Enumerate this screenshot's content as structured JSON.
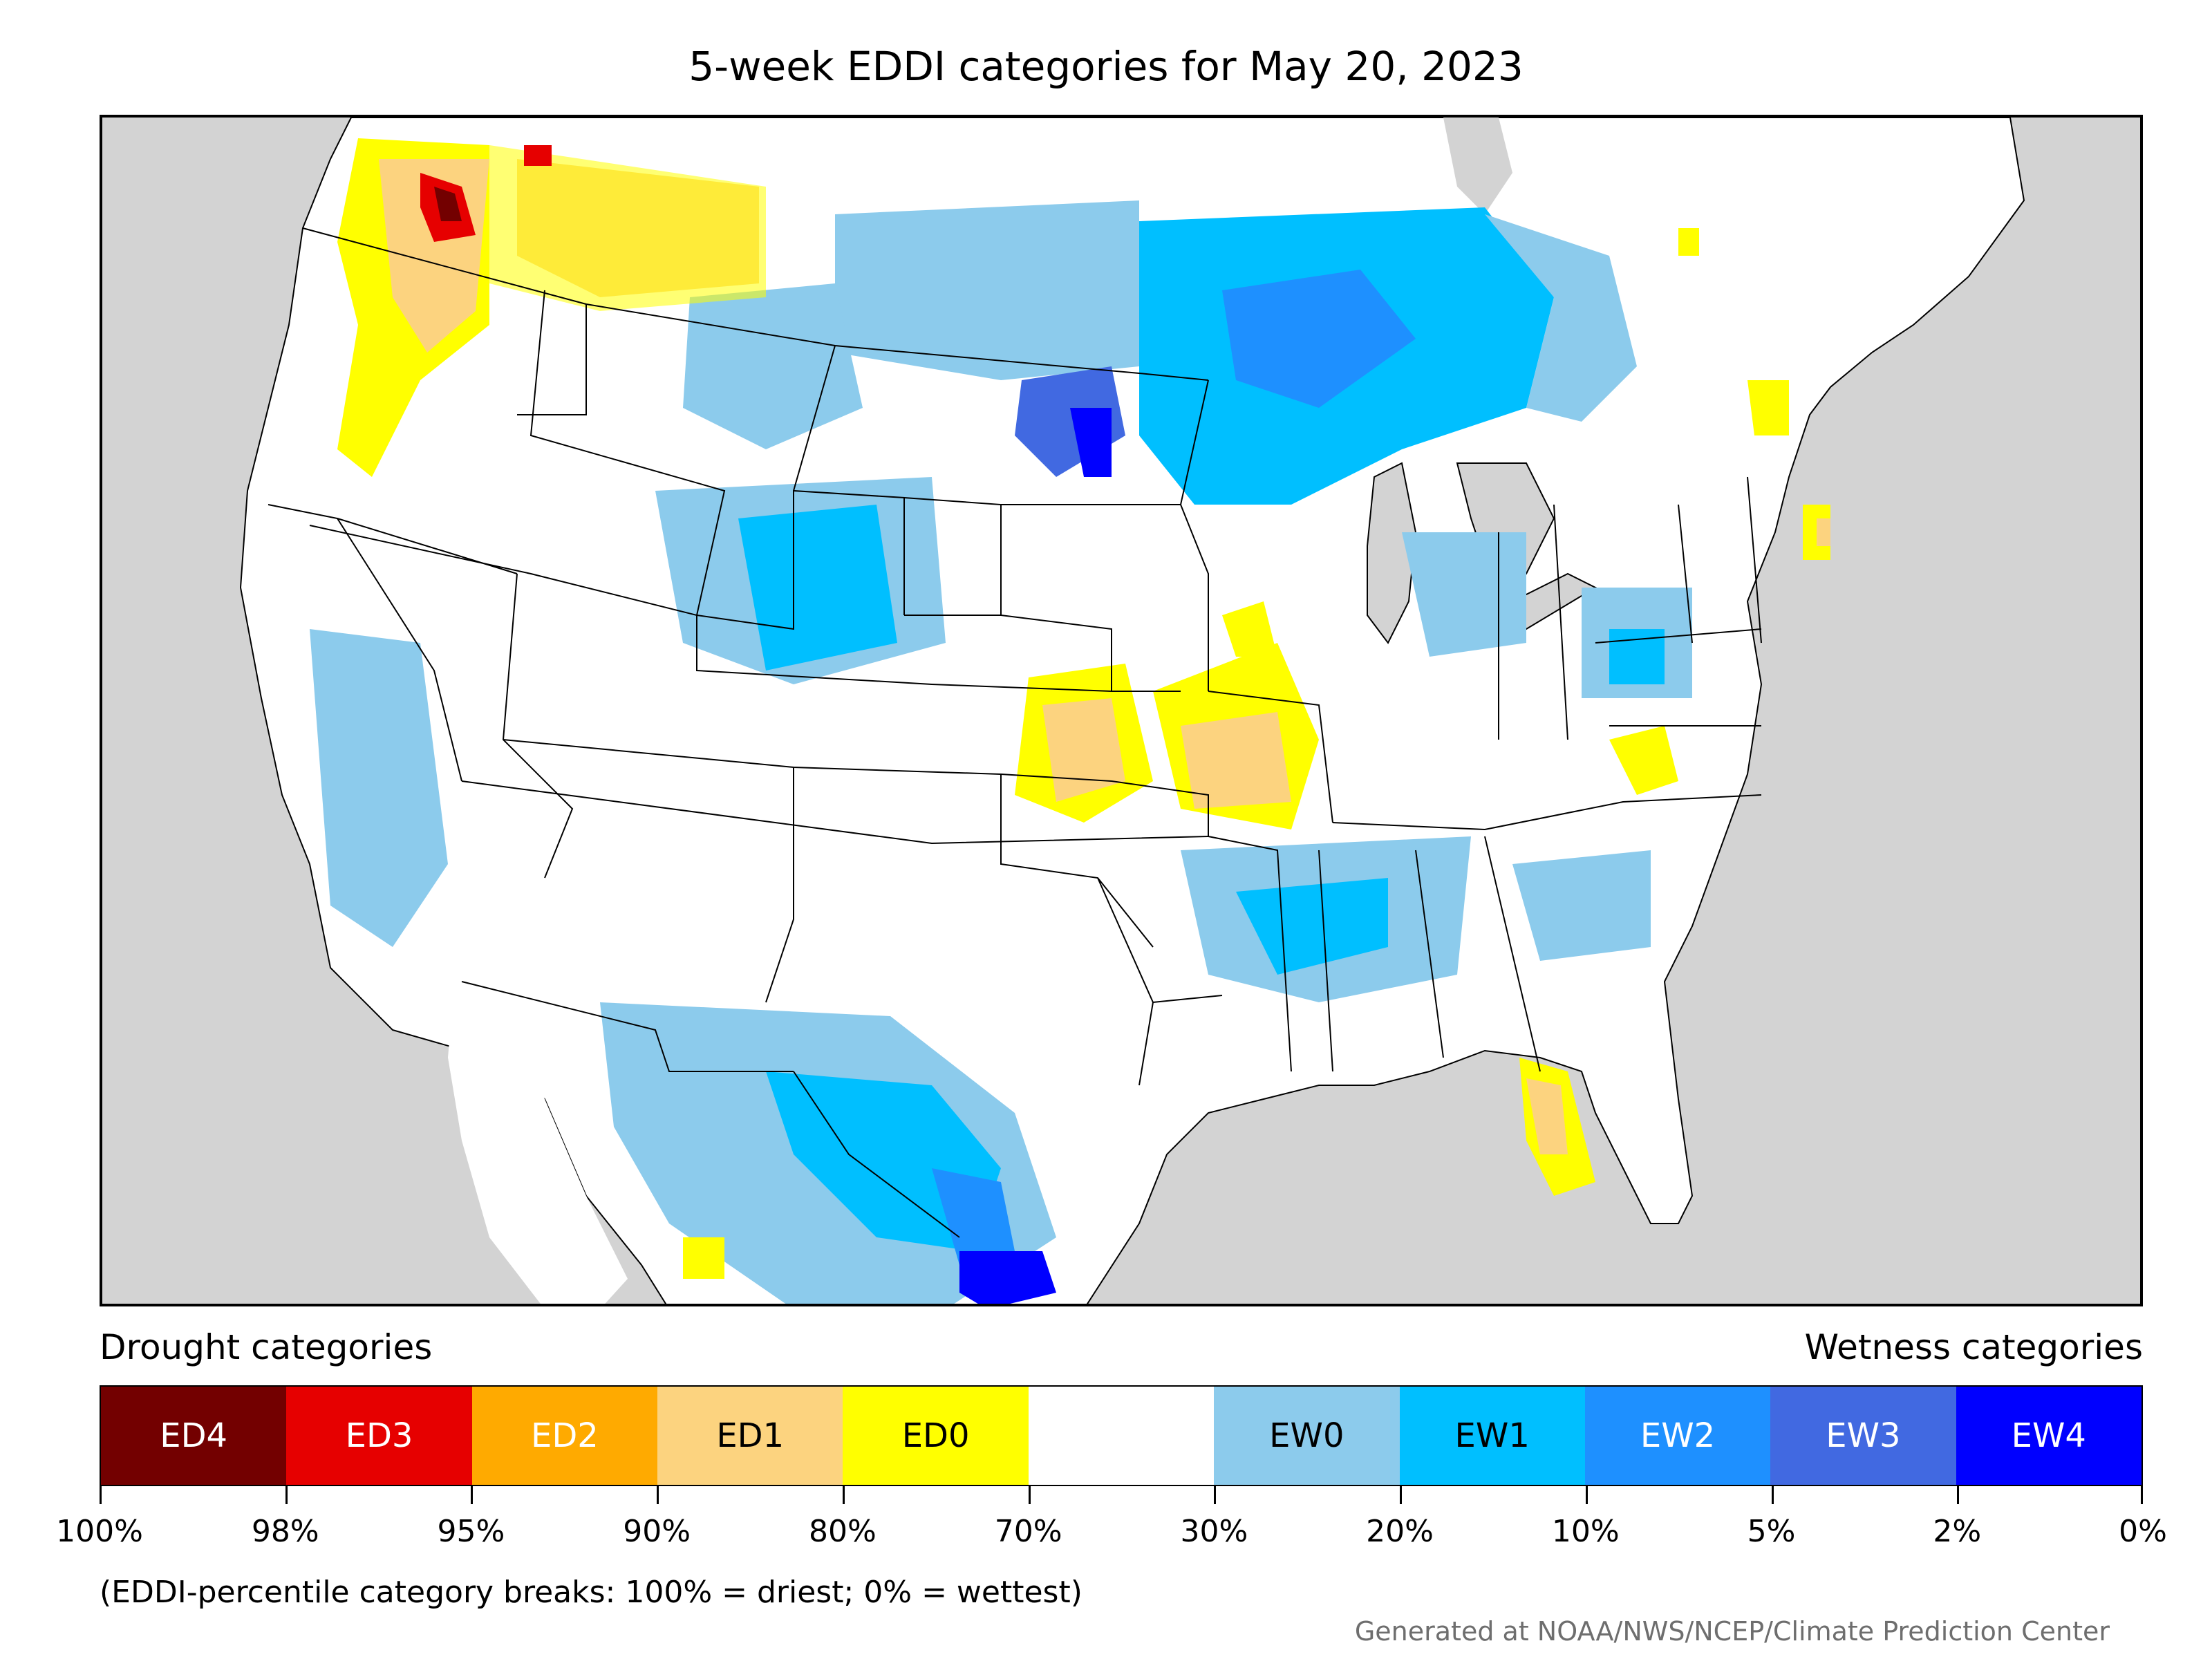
{
  "title": "5-week EDDI categories for May 20, 2023",
  "legend": {
    "drought_heading": "Drought categories",
    "wetness_heading": "Wetness categories",
    "categories": [
      {
        "label": "ED4",
        "color": "#730000",
        "text_color": "#ffffff"
      },
      {
        "label": "ED3",
        "color": "#e60000",
        "text_color": "#ffffff"
      },
      {
        "label": "ED2",
        "color": "#ffaa00",
        "text_color": "#ffffff"
      },
      {
        "label": "ED1",
        "color": "#fcd37f",
        "text_color": "#000000"
      },
      {
        "label": "ED0",
        "color": "#ffff00",
        "text_color": "#000000"
      },
      {
        "label": "",
        "color": "#ffffff",
        "text_color": "#000000"
      },
      {
        "label": "EW0",
        "color": "#8ccbec",
        "text_color": "#000000"
      },
      {
        "label": "EW1",
        "color": "#00bfff",
        "text_color": "#000000"
      },
      {
        "label": "EW2",
        "color": "#1e90ff",
        "text_color": "#ffffff"
      },
      {
        "label": "EW3",
        "color": "#4169e1",
        "text_color": "#ffffff"
      },
      {
        "label": "EW4",
        "color": "#0000ff",
        "text_color": "#ffffff"
      }
    ],
    "tick_labels": [
      "100%",
      "98%",
      "95%",
      "90%",
      "80%",
      "70%",
      "30%",
      "20%",
      "10%",
      "5%",
      "2%",
      "0%"
    ]
  },
  "note": "(EDDI-percentile category breaks: 100% = driest; 0% = wettest)",
  "credit": "Generated at NOAA/NWS/NCEP/Climate Prediction Center",
  "map": {
    "ocean_color": "#d3d3d3",
    "land_color": "#ffffff",
    "border_color": "#000000"
  }
}
